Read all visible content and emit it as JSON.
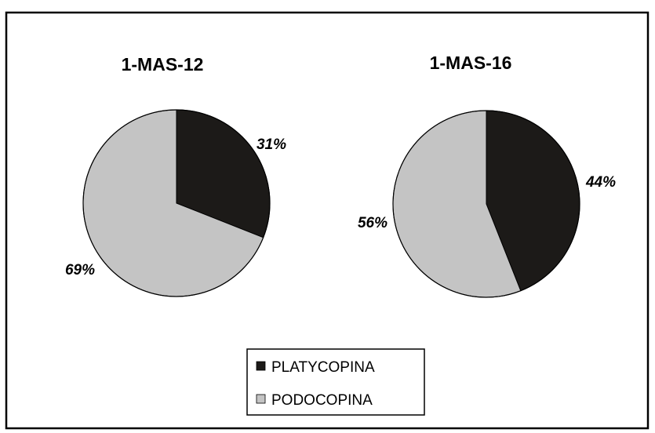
{
  "chart_data": [
    {
      "type": "pie",
      "title": "1-MAS-12",
      "categories": [
        "PLATYCOPINA",
        "PODOCOPINA"
      ],
      "values": [
        31,
        69
      ],
      "labels": [
        "31%",
        "69%"
      ]
    },
    {
      "type": "pie",
      "title": "1-MAS-16",
      "categories": [
        "PLATYCOPINA",
        "PODOCOPINA"
      ],
      "values": [
        44,
        56
      ],
      "labels": [
        "44%",
        "56%"
      ]
    }
  ],
  "legend": {
    "placement": "bottom-center",
    "items": [
      {
        "label": "PLATYCOPINA",
        "color": "#1c1a18"
      },
      {
        "label": "PODOCOPINA",
        "color": "#c4c4c4"
      }
    ]
  },
  "colors": {
    "PLATYCOPINA": "#1c1a18",
    "PODOCOPINA": "#c4c4c4",
    "border": "#000000"
  }
}
